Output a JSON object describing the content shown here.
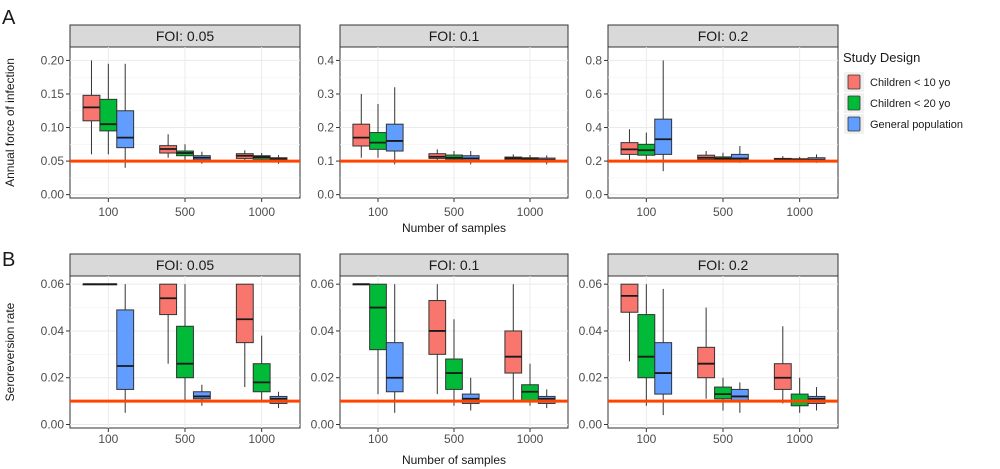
{
  "legend": {
    "title": "Study Design",
    "entries": [
      {
        "label": "Children < 10 yo",
        "color": "#F8766D"
      },
      {
        "label": "Children < 20 yo",
        "color": "#00BA38"
      },
      {
        "label": "General population",
        "color": "#619CFF"
      }
    ]
  },
  "reference_line_color": "#FF4500",
  "chart_data": [
    {
      "type": "boxplot",
      "tag": "A",
      "ylabel": "Annual force of infection",
      "xlabel": "Number of samples",
      "categories": [
        "100",
        "500",
        "1000"
      ],
      "series_names": [
        "Children < 10 yo",
        "Children < 20 yo",
        "General population"
      ],
      "panels": [
        {
          "strip": "FOI: 0.05",
          "ylim": [
            -0.005,
            0.22
          ],
          "yticks": [
            0.0,
            0.05,
            0.1,
            0.15,
            0.2
          ],
          "ytick_labels": [
            "0.00",
            "0.05",
            "0.10",
            "0.15",
            "0.20"
          ],
          "reference": 0.05,
          "boxes": [
            [
              [
                0.06,
                0.11,
                0.13,
                0.148,
                0.2
              ],
              [
                0.06,
                0.095,
                0.105,
                0.142,
                0.195
              ],
              [
                0.04,
                0.07,
                0.085,
                0.125,
                0.195
              ]
            ],
            [
              [
                0.055,
                0.062,
                0.068,
                0.073,
                0.09
              ],
              [
                0.05,
                0.058,
                0.062,
                0.065,
                0.075
              ],
              [
                0.046,
                0.052,
                0.055,
                0.058,
                0.064
              ]
            ],
            [
              [
                0.05,
                0.054,
                0.058,
                0.061,
                0.066
              ],
              [
                0.05,
                0.053,
                0.056,
                0.058,
                0.062
              ],
              [
                0.046,
                0.05,
                0.053,
                0.055,
                0.059
              ]
            ]
          ]
        },
        {
          "strip": "FOI: 0.1",
          "ylim": [
            -0.01,
            0.44
          ],
          "yticks": [
            0.0,
            0.1,
            0.2,
            0.3,
            0.4
          ],
          "ytick_labels": [
            "0.0",
            "0.1",
            "0.2",
            "0.3",
            "0.4"
          ],
          "reference": 0.1,
          "boxes": [
            [
              [
                0.11,
                0.145,
                0.17,
                0.21,
                0.3
              ],
              [
                0.11,
                0.135,
                0.155,
                0.185,
                0.27
              ],
              [
                0.09,
                0.13,
                0.16,
                0.21,
                0.32
              ]
            ],
            [
              [
                0.1,
                0.108,
                0.113,
                0.122,
                0.135
              ],
              [
                0.1,
                0.106,
                0.11,
                0.118,
                0.13
              ],
              [
                0.09,
                0.1,
                0.108,
                0.116,
                0.13
              ]
            ],
            [
              [
                0.1,
                0.104,
                0.108,
                0.112,
                0.12
              ],
              [
                0.1,
                0.103,
                0.106,
                0.11,
                0.118
              ],
              [
                0.09,
                0.1,
                0.104,
                0.109,
                0.117
              ]
            ]
          ]
        },
        {
          "strip": "FOI: 0.2",
          "ylim": [
            -0.02,
            0.88
          ],
          "yticks": [
            0.0,
            0.2,
            0.4,
            0.6,
            0.8
          ],
          "ytick_labels": [
            "0.0",
            "0.2",
            "0.4",
            "0.6",
            "0.8"
          ],
          "reference": 0.2,
          "boxes": [
            [
              [
                0.2,
                0.24,
                0.27,
                0.31,
                0.39
              ],
              [
                0.19,
                0.235,
                0.265,
                0.3,
                0.37
              ],
              [
                0.14,
                0.24,
                0.33,
                0.45,
                0.8
              ]
            ],
            [
              [
                0.2,
                0.21,
                0.22,
                0.235,
                0.26
              ],
              [
                0.2,
                0.21,
                0.215,
                0.225,
                0.25
              ],
              [
                0.19,
                0.2,
                0.215,
                0.24,
                0.29
              ]
            ],
            [
              [
                0.2,
                0.206,
                0.21,
                0.216,
                0.23
              ],
              [
                0.2,
                0.204,
                0.208,
                0.214,
                0.225
              ],
              [
                0.19,
                0.202,
                0.208,
                0.22,
                0.24
              ]
            ]
          ]
        }
      ]
    },
    {
      "type": "boxplot",
      "tag": "B",
      "ylabel": "Seroreversion rate",
      "xlabel": "Number of samples",
      "categories": [
        "100",
        "500",
        "1000"
      ],
      "series_names": [
        "Children < 10 yo",
        "Children < 20 yo",
        "General population"
      ],
      "panels": [
        {
          "strip": "FOI: 0.05",
          "ylim": [
            -0.0015,
            0.0635
          ],
          "yticks": [
            0.0,
            0.02,
            0.04,
            0.06
          ],
          "ytick_labels": [
            "0.00",
            "0.02",
            "0.04",
            "0.06"
          ],
          "reference": 0.01,
          "boxes": [
            [
              [
                0.06,
                0.06,
                0.06,
                0.06,
                0.06
              ],
              [
                0.06,
                0.06,
                0.06,
                0.06,
                0.06
              ],
              [
                0.005,
                0.015,
                0.025,
                0.049,
                0.06
              ]
            ],
            [
              [
                0.026,
                0.047,
                0.054,
                0.06,
                0.06
              ],
              [
                0.01,
                0.02,
                0.026,
                0.042,
                0.06
              ],
              [
                0.008,
                0.011,
                0.012,
                0.014,
                0.017
              ]
            ],
            [
              [
                0.016,
                0.035,
                0.045,
                0.06,
                0.06
              ],
              [
                0.01,
                0.014,
                0.018,
                0.026,
                0.038
              ],
              [
                0.007,
                0.009,
                0.011,
                0.012,
                0.014
              ]
            ]
          ]
        },
        {
          "strip": "FOI: 0.1",
          "ylim": [
            -0.0015,
            0.0635
          ],
          "yticks": [
            0.0,
            0.02,
            0.04,
            0.06
          ],
          "ytick_labels": [
            "0.00",
            "0.02",
            "0.04",
            "0.06"
          ],
          "reference": 0.01,
          "boxes": [
            [
              [
                0.06,
                0.06,
                0.06,
                0.06,
                0.06
              ],
              [
                0.013,
                0.032,
                0.05,
                0.06,
                0.06
              ],
              [
                0.005,
                0.014,
                0.02,
                0.035,
                0.06
              ]
            ],
            [
              [
                0.013,
                0.03,
                0.04,
                0.053,
                0.06
              ],
              [
                0.008,
                0.015,
                0.022,
                0.028,
                0.045
              ],
              [
                0.006,
                0.009,
                0.011,
                0.013,
                0.02
              ]
            ],
            [
              [
                0.01,
                0.022,
                0.029,
                0.04,
                0.06
              ],
              [
                0.008,
                0.01,
                0.014,
                0.017,
                0.026
              ],
              [
                0.007,
                0.009,
                0.011,
                0.012,
                0.015
              ]
            ]
          ]
        },
        {
          "strip": "FOI: 0.2",
          "ylim": [
            -0.0015,
            0.0635
          ],
          "yticks": [
            0.0,
            0.02,
            0.04,
            0.06
          ],
          "ytick_labels": [
            "0.00",
            "0.02",
            "0.04",
            "0.06"
          ],
          "reference": 0.01,
          "boxes": [
            [
              [
                0.027,
                0.048,
                0.055,
                0.06,
                0.06
              ],
              [
                0.008,
                0.02,
                0.029,
                0.047,
                0.06
              ],
              [
                0.004,
                0.013,
                0.022,
                0.035,
                0.058
              ]
            ],
            [
              [
                0.011,
                0.02,
                0.026,
                0.033,
                0.05
              ],
              [
                0.006,
                0.011,
                0.013,
                0.016,
                0.02
              ],
              [
                0.005,
                0.01,
                0.012,
                0.015,
                0.018
              ]
            ],
            [
              [
                0.009,
                0.015,
                0.02,
                0.026,
                0.042
              ],
              [
                0.005,
                0.008,
                0.01,
                0.013,
                0.02
              ],
              [
                0.006,
                0.009,
                0.011,
                0.012,
                0.016
              ]
            ]
          ]
        }
      ]
    }
  ]
}
